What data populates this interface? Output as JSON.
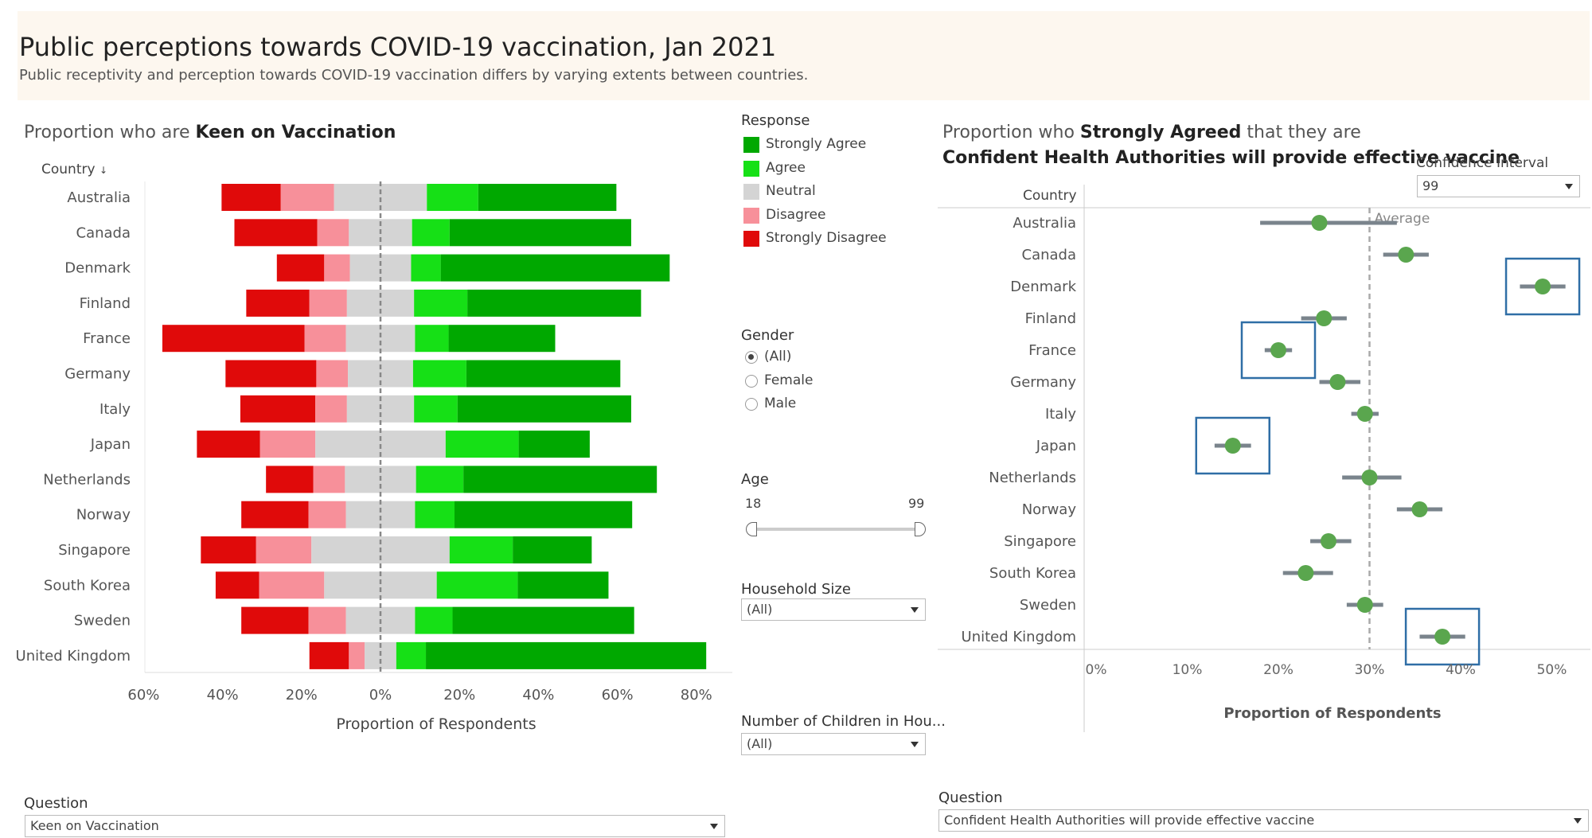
{
  "header": {
    "title": "Public perceptions towards COVID-19 vaccination, Jan 2021",
    "subtitle": "Public receptivity and perception towards COVID-19 vaccination differs by varying extents between countries."
  },
  "left_panel": {
    "title_prefix": "Proportion who are ",
    "title_bold": "Keen on Vaccination",
    "country_header": "Country",
    "question_label": "Question",
    "question_value": "Keen on Vaccination"
  },
  "right_panel": {
    "title_prefix": "Proportion who ",
    "title_bold": "Strongly Agreed",
    "title_suffix": " that they are",
    "title_line2": "Confident Health Authorities will provide effective vaccine",
    "country_header": "Country",
    "ci_label": "Confidence Interval",
    "ci_value": "99",
    "question_label": "Question",
    "question_value": "Confident Health Authorities will provide effective vaccine"
  },
  "filters": {
    "response_label": "Response",
    "responses": [
      {
        "label": "Strongly Agree",
        "color": "#00a800"
      },
      {
        "label": "Agree",
        "color": "#16e016"
      },
      {
        "label": "Neutral",
        "color": "#d4d4d4"
      },
      {
        "label": "Disagree",
        "color": "#f7909a"
      },
      {
        "label": "Strongly Disagree",
        "color": "#e00a0a"
      }
    ],
    "gender_label": "Gender",
    "gender_options": [
      "(All)",
      "Female",
      "Male"
    ],
    "gender_selected": "(All)",
    "age_label": "Age",
    "age_min": "18",
    "age_max": "99",
    "household_label": "Household Size",
    "household_value": "(All)",
    "children_label": "Number of Children in Hou...",
    "children_value": "(All)"
  },
  "chart_data": [
    {
      "type": "bar",
      "title": "Proportion who are Keen on Vaccination",
      "xlabel": "Proportion of Respondents",
      "ylabel": "Country",
      "xlim": [
        -0.6,
        0.8
      ],
      "xticks": [
        "60%",
        "40%",
        "20%",
        "0%",
        "20%",
        "40%",
        "60%",
        "80%"
      ],
      "categories": [
        "Australia",
        "Canada",
        "Denmark",
        "Finland",
        "France",
        "Germany",
        "Italy",
        "Japan",
        "Netherlands",
        "Norway",
        "Singapore",
        "South Korea",
        "Sweden",
        "United Kingdom"
      ],
      "series": [
        {
          "name": "Strongly Disagree",
          "color": "#e00a0a",
          "values": [
            0.15,
            0.21,
            0.12,
            0.16,
            0.36,
            0.23,
            0.19,
            0.16,
            0.12,
            0.17,
            0.14,
            0.11,
            0.17,
            0.1
          ]
        },
        {
          "name": "Disagree",
          "color": "#f7909a",
          "values": [
            0.135,
            0.08,
            0.065,
            0.095,
            0.105,
            0.08,
            0.08,
            0.14,
            0.08,
            0.095,
            0.14,
            0.165,
            0.095,
            0.04
          ]
        },
        {
          "name": "Neutral",
          "color": "#d4d4d4",
          "values": [
            0.235,
            0.16,
            0.155,
            0.17,
            0.175,
            0.165,
            0.17,
            0.33,
            0.18,
            0.175,
            0.35,
            0.285,
            0.175,
            0.08
          ]
        },
        {
          "name": "Agree",
          "color": "#16e016",
          "values": [
            0.13,
            0.095,
            0.075,
            0.135,
            0.085,
            0.135,
            0.11,
            0.185,
            0.12,
            0.1,
            0.16,
            0.205,
            0.095,
            0.075
          ]
        },
        {
          "name": "Strongly Agree",
          "color": "#00a800",
          "values": [
            0.35,
            0.46,
            0.58,
            0.44,
            0.27,
            0.39,
            0.44,
            0.18,
            0.49,
            0.45,
            0.2,
            0.23,
            0.46,
            0.71
          ]
        }
      ]
    },
    {
      "type": "scatter",
      "title": "Proportion who Strongly Agreed that they are Confident Health Authorities will provide effective vaccine",
      "xlabel": "Proportion of Respondents",
      "ylabel": "Country",
      "xlim": [
        -0.01,
        0.55
      ],
      "xticks": [
        "0%",
        "10%",
        "20%",
        "30%",
        "40%",
        "50%"
      ],
      "average": 0.3,
      "average_label": "Average",
      "categories": [
        "Australia",
        "Canada",
        "Denmark",
        "Finland",
        "France",
        "Germany",
        "Italy",
        "Japan",
        "Netherlands",
        "Norway",
        "Singapore",
        "South Korea",
        "Sweden",
        "United Kingdom"
      ],
      "values": [
        0.245,
        0.34,
        0.49,
        0.25,
        0.2,
        0.265,
        0.295,
        0.15,
        0.3,
        0.355,
        0.255,
        0.23,
        0.295,
        0.38
      ],
      "ci_low": [
        0.18,
        0.315,
        0.465,
        0.225,
        0.185,
        0.245,
        0.28,
        0.13,
        0.27,
        0.33,
        0.235,
        0.205,
        0.275,
        0.355
      ],
      "ci_high": [
        0.33,
        0.365,
        0.515,
        0.275,
        0.215,
        0.29,
        0.31,
        0.17,
        0.335,
        0.38,
        0.28,
        0.26,
        0.315,
        0.405
      ],
      "highlighted": [
        "Denmark",
        "France",
        "Japan",
        "United Kingdom"
      ]
    }
  ]
}
